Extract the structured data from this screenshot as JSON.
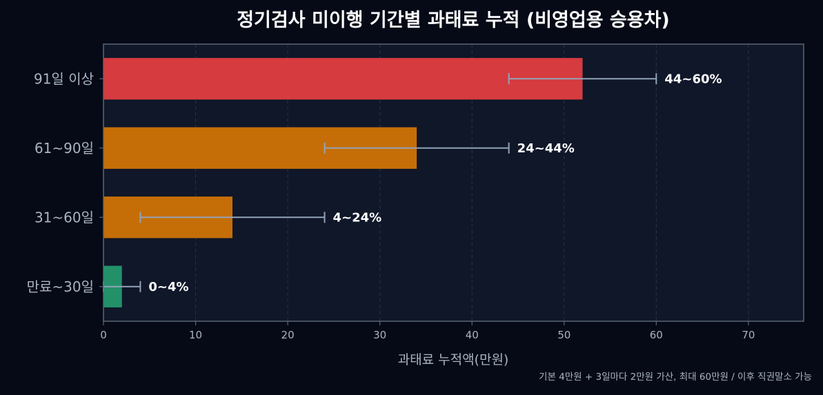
{
  "chart_data": {
    "type": "bar",
    "orientation": "horizontal",
    "title": "정기검사 미이행 기간별 과태료 누적 (비영업용 승용차)",
    "xlabel": "과태료 누적액(만원)",
    "ylabel": "",
    "footnote": "기본 4만원 + 3일마다 2만원 가산, 최대 60만원 / 이후 직권말소 가능",
    "xlim": [
      0,
      76
    ],
    "xticks": [
      0,
      10,
      20,
      30,
      40,
      50,
      60,
      70
    ],
    "grid": "x-dashed",
    "categories": [
      "91일 이상",
      "61~90일",
      "31~60일",
      "만료~30일"
    ],
    "values": [
      52,
      34,
      14,
      2
    ],
    "ranges": [
      [
        44,
        60
      ],
      [
        24,
        44
      ],
      [
        4,
        24
      ],
      [
        0,
        4
      ]
    ],
    "range_labels": [
      "44~60%",
      "24~44%",
      "4~24%",
      "0~4%"
    ],
    "colors": [
      "#d63b3f",
      "#c56e07",
      "#c56e07",
      "#22916a"
    ],
    "style": {
      "background": "#050a16",
      "plot_background": "#0f1729",
      "axis_color": "#5b6674",
      "grid_color": "#2a3446",
      "text_color": "#ffffff",
      "tick_color": "#aab4c3",
      "errorbar_color": "#94a3b8"
    }
  }
}
